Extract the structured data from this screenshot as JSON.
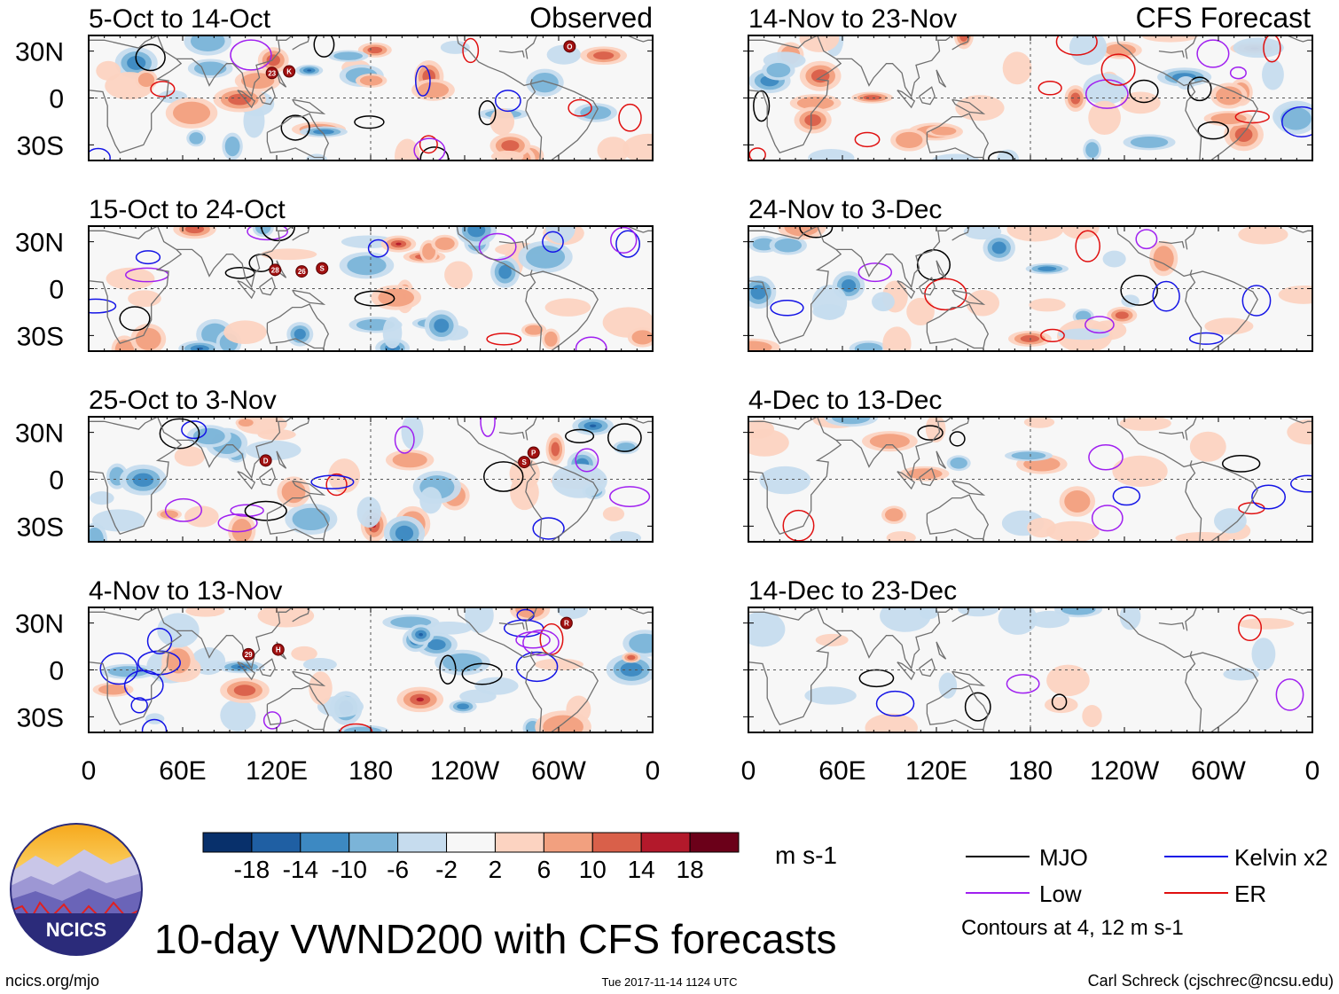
{
  "figure": {
    "title": "10-day VWND200 with CFS forecasts",
    "footer_left": "ncics.org/mjo",
    "footer_center": "Tue 2017-11-14 1124 UTC",
    "footer_right": "Carl Schreck (cjschrec@ncsu.edu)",
    "logo_text": "NCICS"
  },
  "chart_data": {
    "type": "heatmap",
    "variable": "VWND200 anomaly",
    "units": "m s-1",
    "column_headers": {
      "left": "Observed",
      "right": "CFS Forecast"
    },
    "panels": [
      {
        "column": "left",
        "label": "5-Oct to 14-Oct",
        "source": "Observed"
      },
      {
        "column": "left",
        "label": "15-Oct to 24-Oct",
        "source": "Observed"
      },
      {
        "column": "left",
        "label": "25-Oct to 3-Nov",
        "source": "Observed"
      },
      {
        "column": "left",
        "label": "4-Nov to 13-Nov",
        "source": "Observed"
      },
      {
        "column": "right",
        "label": "14-Nov to 23-Nov",
        "source": "CFS Forecast"
      },
      {
        "column": "right",
        "label": "24-Nov to 3-Dec",
        "source": "CFS Forecast"
      },
      {
        "column": "right",
        "label": "4-Dec to 13-Dec",
        "source": "CFS Forecast"
      },
      {
        "column": "right",
        "label": "14-Dec to 23-Dec",
        "source": "CFS Forecast"
      }
    ],
    "lon_ticks": [
      "0",
      "60E",
      "120E",
      "180",
      "120W",
      "60W",
      "0"
    ],
    "lat_ticks": [
      "30N",
      "0",
      "30S"
    ],
    "lat_range": [
      -40,
      40
    ],
    "lon_range": [
      0,
      360
    ],
    "colorbar": {
      "ticks": [
        "-18",
        "-14",
        "-10",
        "-6",
        "-2",
        "2",
        "6",
        "10",
        "14",
        "18"
      ],
      "colors": [
        "#08306b",
        "#1f5fa3",
        "#3d89c2",
        "#7bb4d8",
        "#c6dcee",
        "#f7f7f7",
        "#fcd3c1",
        "#f2a07f",
        "#d9604a",
        "#b3192b",
        "#6b0019"
      ],
      "units_label": "m s-1"
    },
    "legend": [
      {
        "label": "MJO",
        "color": "#000000"
      },
      {
        "label": "Kelvin x2",
        "color": "#1414e6"
      },
      {
        "label": "Low",
        "color": "#a020f0"
      },
      {
        "label": "ER",
        "color": "#e01010"
      }
    ],
    "contour_note": "Contours at 4, 12 m s-1",
    "storm_markers": [
      {
        "panel": 0,
        "lon": 117,
        "lat": 16,
        "label": "23"
      },
      {
        "panel": 0,
        "lon": 128,
        "lat": 17,
        "label": "K"
      },
      {
        "panel": 0,
        "lon": 307,
        "lat": 33,
        "label": "O"
      },
      {
        "panel": 1,
        "lon": 119,
        "lat": 12,
        "label": "28"
      },
      {
        "panel": 1,
        "lon": 136,
        "lat": 11,
        "label": "26"
      },
      {
        "panel": 1,
        "lon": 149,
        "lat": 13,
        "label": "S"
      },
      {
        "panel": 2,
        "lon": 113,
        "lat": 12,
        "label": "D"
      },
      {
        "panel": 2,
        "lon": 278,
        "lat": 11,
        "label": "S"
      },
      {
        "panel": 2,
        "lon": 284,
        "lat": 17,
        "label": "P"
      },
      {
        "panel": 3,
        "lon": 102,
        "lat": 10,
        "label": "29"
      },
      {
        "panel": 3,
        "lon": 121,
        "lat": 13,
        "label": "H"
      },
      {
        "panel": 3,
        "lon": 305,
        "lat": 30,
        "label": "R"
      }
    ]
  }
}
